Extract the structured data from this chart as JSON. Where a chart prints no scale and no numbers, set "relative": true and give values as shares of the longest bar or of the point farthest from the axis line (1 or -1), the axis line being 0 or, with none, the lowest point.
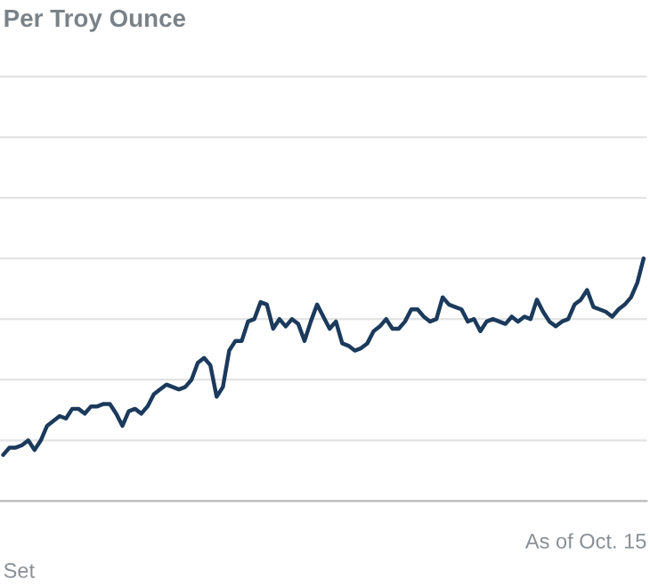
{
  "chart_data": {
    "type": "line",
    "title": "Per Troy Ounce",
    "relative": true,
    "grid": "y",
    "annotations": [
      "Set",
      "As of Oct. 15"
    ],
    "categories": [
      null,
      null,
      null,
      null,
      null,
      null,
      null,
      null,
      null,
      null,
      null,
      null,
      null,
      null,
      null,
      null,
      null,
      null,
      null,
      null,
      null,
      null,
      null,
      null,
      null,
      null,
      null,
      null,
      null,
      null,
      null,
      null,
      null,
      null,
      null,
      null,
      null,
      null,
      null,
      null,
      null,
      null,
      null,
      null,
      null,
      null,
      null,
      null,
      null,
      null,
      null,
      null,
      null,
      null,
      null,
      null,
      null,
      null,
      null,
      null,
      null,
      null,
      null,
      null,
      null,
      null,
      null,
      null,
      null,
      null,
      null,
      null,
      null,
      null,
      null,
      null,
      null,
      null,
      null,
      null,
      null,
      null,
      null,
      null,
      null,
      null,
      null,
      null,
      null,
      null,
      null,
      null,
      null,
      null,
      null,
      null,
      null,
      null,
      null,
      null,
      null,
      null,
      null
    ],
    "series": [
      {
        "color": "#1b3a5c",
        "values": [
          0.19,
          0.22,
          0.22,
          0.23,
          0.25,
          0.21,
          0.25,
          0.31,
          0.33,
          0.35,
          0.34,
          0.38,
          0.38,
          0.36,
          0.39,
          0.39,
          0.4,
          0.4,
          0.36,
          0.31,
          0.37,
          0.38,
          0.36,
          0.39,
          0.44,
          0.46,
          0.48,
          0.47,
          0.46,
          0.47,
          0.5,
          0.57,
          0.59,
          0.56,
          0.43,
          0.47,
          0.62,
          0.66,
          0.66,
          0.74,
          0.75,
          0.82,
          0.81,
          0.71,
          0.75,
          0.72,
          0.75,
          0.73,
          0.66,
          0.74,
          0.81,
          0.76,
          0.71,
          0.74,
          0.65,
          0.64,
          0.62,
          0.63,
          0.65,
          0.7,
          0.72,
          0.75,
          0.71,
          0.71,
          0.74,
          0.79,
          0.79,
          0.76,
          0.74,
          0.75,
          0.84,
          0.81,
          0.8,
          0.79,
          0.74,
          0.75,
          0.7,
          0.74,
          0.75,
          0.74,
          0.73,
          0.76,
          0.74,
          0.76,
          0.75,
          0.83,
          0.78,
          0.74,
          0.72,
          0.74,
          0.75,
          0.81,
          0.83,
          0.87,
          0.8,
          0.79,
          0.78,
          0.76,
          0.79,
          0.81,
          0.84,
          0.9,
          1.0
        ]
      }
    ]
  }
}
